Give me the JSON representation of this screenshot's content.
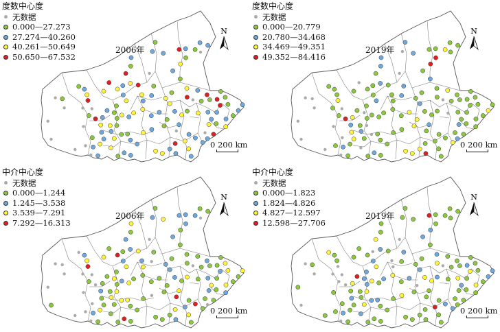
{
  "panels": [
    {
      "id": "degree-2006",
      "legend_title": "度数中心度",
      "year": "2006年",
      "classes": [
        {
          "label": "无数据",
          "color": "#aaaaaa"
        },
        {
          "label": "0.000—27.273",
          "color": "#8dc63f"
        },
        {
          "label": "27.274—40.260",
          "color": "#6fa8dc"
        },
        {
          "label": "40.261—50.649",
          "color": "#fff33b"
        },
        {
          "label": "50.650—67.532",
          "color": "#e02020"
        }
      ],
      "scale_zero": "0",
      "scale_label": "200 km",
      "north_label": "N"
    },
    {
      "id": "degree-2019",
      "legend_title": "度数中心度",
      "year": "2019年",
      "classes": [
        {
          "label": "无数据",
          "color": "#aaaaaa"
        },
        {
          "label": "0.000—20.779",
          "color": "#8dc63f"
        },
        {
          "label": "20.780—34.468",
          "color": "#6fa8dc"
        },
        {
          "label": "34.469—49.351",
          "color": "#fff33b"
        },
        {
          "label": "49.352—84.416",
          "color": "#e02020"
        }
      ],
      "scale_zero": "0",
      "scale_label": "200 km",
      "north_label": "N"
    },
    {
      "id": "betweenness-2006",
      "legend_title": "中介中心度",
      "year": "2006年",
      "classes": [
        {
          "label": "无数据",
          "color": "#aaaaaa"
        },
        {
          "label": "0.000—1.244",
          "color": "#8dc63f"
        },
        {
          "label": "1.245—3.538",
          "color": "#6fa8dc"
        },
        {
          "label": "3.539—7.291",
          "color": "#fff33b"
        },
        {
          "label": "7.292—16.313",
          "color": "#e02020"
        }
      ],
      "scale_zero": "0",
      "scale_label": "200 km",
      "north_label": "N"
    },
    {
      "id": "betweenness-2019",
      "legend_title": "中介中心度",
      "year": "2019年",
      "classes": [
        {
          "label": "无数据",
          "color": "#aaaaaa"
        },
        {
          "label": "0.000—1.823",
          "color": "#8dc63f"
        },
        {
          "label": "1.824—4.826",
          "color": "#6fa8dc"
        },
        {
          "label": "4.827—12.597",
          "color": "#fff33b"
        },
        {
          "label": "12.598—27.706",
          "color": "#e02020"
        }
      ],
      "scale_zero": "0",
      "scale_label": "200 km",
      "north_label": "N"
    }
  ]
}
